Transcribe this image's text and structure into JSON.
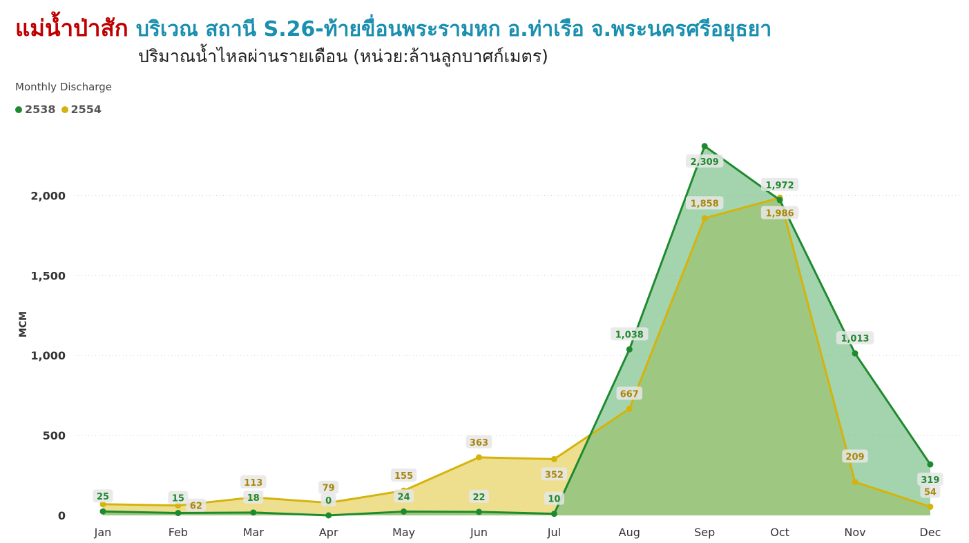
{
  "header": {
    "title": "แม่น้ำป่าสัก",
    "location": "บริเวณ สถานี S.26-ท้ายขื่อนพระรามหก อ.ท่าเรือ จ.พระนครศรีอยุธยา",
    "subtitle": "ปริมาณน้ำไหลผ่านรายเดือน (หน่วย:ล้านลูกบาศก์เมตร)"
  },
  "legend": {
    "title": "Monthly Discharge"
  },
  "colors": {
    "series_2538": "#1e8a2e",
    "series_2554": "#d4b30c",
    "fill_2538": "#6cb97a",
    "fill_2554": "#e8d469"
  },
  "chart_data": {
    "type": "area",
    "title": "",
    "xlabel": "",
    "ylabel": "MCM",
    "categories": [
      "Jan",
      "Feb",
      "Mar",
      "Apr",
      "May",
      "Jun",
      "Jul",
      "Aug",
      "Sep",
      "Oct",
      "Nov",
      "Dec"
    ],
    "ylim": [
      0,
      2300
    ],
    "yticks": [
      0,
      500,
      1000,
      1500,
      2000
    ],
    "ytick_labels": [
      "0",
      "500",
      "1,000",
      "1,500",
      "2,000"
    ],
    "grid": true,
    "legend_position": "top-left",
    "series": [
      {
        "name": "2538",
        "values": [
          25,
          15,
          18,
          0,
          24,
          22,
          10,
          1038,
          2309,
          1972,
          1013,
          319
        ],
        "labels": [
          "25",
          "15",
          "18",
          "0",
          "24",
          "22",
          "10",
          "1,038",
          "2,309",
          "1,972",
          "1,013",
          "319"
        ]
      },
      {
        "name": "2554",
        "values": [
          70,
          62,
          113,
          79,
          155,
          363,
          352,
          667,
          1858,
          1986,
          209,
          54
        ],
        "labels": [
          "",
          "62",
          "113",
          "79",
          "155",
          "363",
          "352",
          "667",
          "1,858",
          "1,986",
          "209",
          "54"
        ]
      }
    ]
  }
}
